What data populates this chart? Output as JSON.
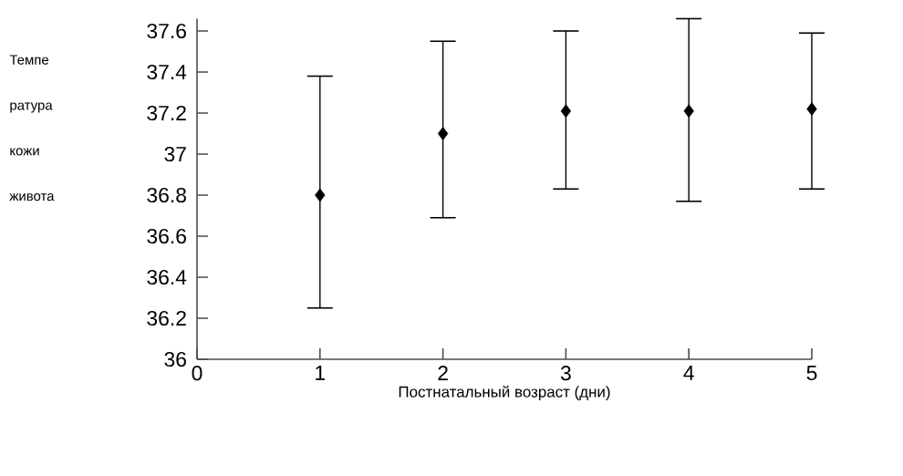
{
  "chart_data": {
    "type": "scatter",
    "xlabel": "Постнатальный возраст (дни)",
    "ylabel": "Темпе ратура кожи живота",
    "x": [
      1,
      2,
      3,
      4,
      5
    ],
    "values": [
      36.8,
      37.1,
      37.21,
      37.21,
      37.22
    ],
    "errors": [
      [
        36.25,
        37.38
      ],
      [
        36.69,
        37.55
      ],
      [
        36.83,
        37.6
      ],
      [
        36.77,
        37.66
      ],
      [
        36.83,
        37.59
      ]
    ],
    "color": "#000000",
    "marker": "diamond",
    "xlim": [
      0,
      5
    ],
    "xticks": [
      0,
      1,
      2,
      3,
      4,
      5
    ],
    "ylim": [
      36,
      37.66
    ],
    "yticks": [
      36,
      36.2,
      36.4,
      36.6,
      36.8,
      37,
      37.2,
      37.4,
      37.6
    ],
    "grid": false
  }
}
